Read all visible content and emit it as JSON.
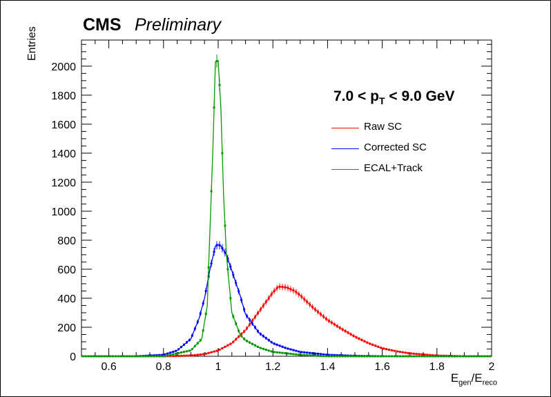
{
  "header": {
    "experiment": "CMS",
    "status": "Preliminary"
  },
  "annotation": {
    "range_prefix": "7.0 < p",
    "range_sub": "T",
    "range_suffix": " < 9.0 GeV"
  },
  "colors": {
    "raw": "#ff0000",
    "corrected": "#0000ff",
    "ecal": "#009900"
  },
  "chart_data": {
    "type": "line",
    "title": "",
    "xlabel_main": "E",
    "xlabel_sub1": "gen",
    "xlabel_mid": "/E",
    "xlabel_sub2": "reco",
    "ylabel": "Entries",
    "xlim": [
      0.5,
      2.0
    ],
    "ylim": [
      0,
      2180
    ],
    "x_ticks": [
      "0.6",
      "0.8",
      "1",
      "1.2",
      "1.4",
      "1.6",
      "1.8",
      "2"
    ],
    "x_tick_values": [
      0.6,
      0.8,
      1.0,
      1.2,
      1.4,
      1.6,
      1.8,
      2.0
    ],
    "y_ticks": [
      "0",
      "200",
      "400",
      "600",
      "800",
      "1000",
      "1200",
      "1400",
      "1600",
      "1800",
      "2000"
    ],
    "y_tick_values": [
      0,
      200,
      400,
      600,
      800,
      1000,
      1200,
      1400,
      1600,
      1800,
      2000
    ],
    "grid": false,
    "legend_position": "top-right",
    "series": [
      {
        "name": "Raw SC",
        "color": "#ff0000",
        "x": [
          0.8,
          0.9,
          0.95,
          1.0,
          1.05,
          1.1,
          1.15,
          1.2,
          1.22,
          1.25,
          1.28,
          1.3,
          1.35,
          1.4,
          1.45,
          1.5,
          1.55,
          1.6,
          1.65,
          1.7,
          1.8,
          1.9,
          2.0
        ],
        "y": [
          0,
          5,
          15,
          40,
          90,
          180,
          310,
          440,
          480,
          475,
          450,
          420,
          330,
          250,
          190,
          135,
          90,
          55,
          35,
          20,
          5,
          0,
          0
        ]
      },
      {
        "name": "Corrected SC",
        "color": "#0000ff",
        "x": [
          0.7,
          0.8,
          0.85,
          0.9,
          0.93,
          0.95,
          0.97,
          0.99,
          1.0,
          1.01,
          1.03,
          1.05,
          1.08,
          1.1,
          1.15,
          1.2,
          1.25,
          1.3,
          1.4,
          1.5,
          1.6
        ],
        "y": [
          0,
          10,
          40,
          120,
          260,
          400,
          600,
          760,
          770,
          760,
          700,
          590,
          420,
          290,
          160,
          90,
          55,
          30,
          10,
          3,
          0
        ]
      },
      {
        "name": "ECAL+Track",
        "color": "#009900",
        "x": [
          0.8,
          0.9,
          0.94,
          0.96,
          0.98,
          0.99,
          1.0,
          1.01,
          1.02,
          1.03,
          1.05,
          1.08,
          1.1,
          1.15,
          1.2,
          1.3,
          1.4
        ],
        "y": [
          0,
          40,
          120,
          350,
          1400,
          2030,
          2040,
          1700,
          1100,
          700,
          300,
          150,
          110,
          60,
          30,
          10,
          0
        ]
      }
    ]
  }
}
